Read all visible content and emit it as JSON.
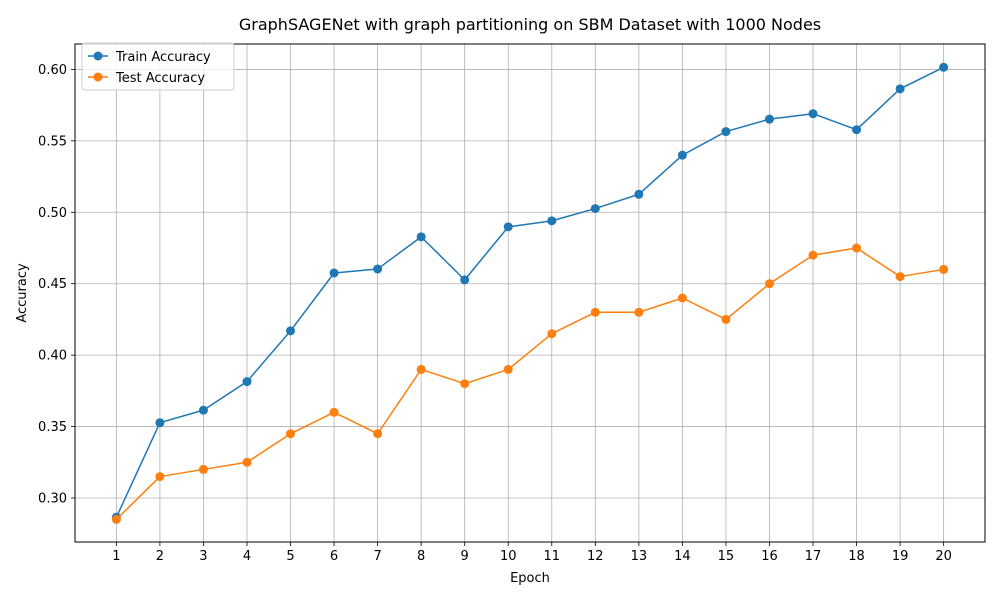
{
  "chart_data": {
    "type": "line",
    "title": "GraphSAGENet with graph partitioning on SBM Dataset with 1000 Nodes",
    "xlabel": "Epoch",
    "ylabel": "Accuracy",
    "x": [
      1,
      2,
      3,
      4,
      5,
      6,
      7,
      8,
      9,
      10,
      11,
      12,
      13,
      14,
      15,
      16,
      17,
      18,
      19,
      20
    ],
    "xlim": [
      0.05,
      20.95
    ],
    "ylim": [
      0.2692,
      0.6178
    ],
    "yticks": [
      0.3,
      0.35,
      0.4,
      0.45,
      0.5,
      0.55,
      0.6
    ],
    "ytick_labels": [
      "0.30",
      "0.35",
      "0.40",
      "0.45",
      "0.50",
      "0.55",
      "0.60"
    ],
    "grid": true,
    "legend_position": "upper-left",
    "series": [
      {
        "name": "Train Accuracy",
        "color": "#1f77b4",
        "marker": "circle",
        "values": [
          0.2865,
          0.3527,
          0.3615,
          0.3815,
          0.417,
          0.4575,
          0.4603,
          0.4828,
          0.4527,
          0.4898,
          0.494,
          0.5026,
          0.5126,
          0.54,
          0.5565,
          0.5652,
          0.569,
          0.5578,
          0.5864,
          0.6015
        ]
      },
      {
        "name": "Test Accuracy",
        "color": "#ff7f0e",
        "marker": "circle",
        "values": [
          0.285,
          0.315,
          0.32,
          0.325,
          0.345,
          0.36,
          0.345,
          0.39,
          0.38,
          0.39,
          0.415,
          0.43,
          0.43,
          0.44,
          0.425,
          0.45,
          0.47,
          0.475,
          0.455,
          0.46
        ]
      }
    ]
  }
}
